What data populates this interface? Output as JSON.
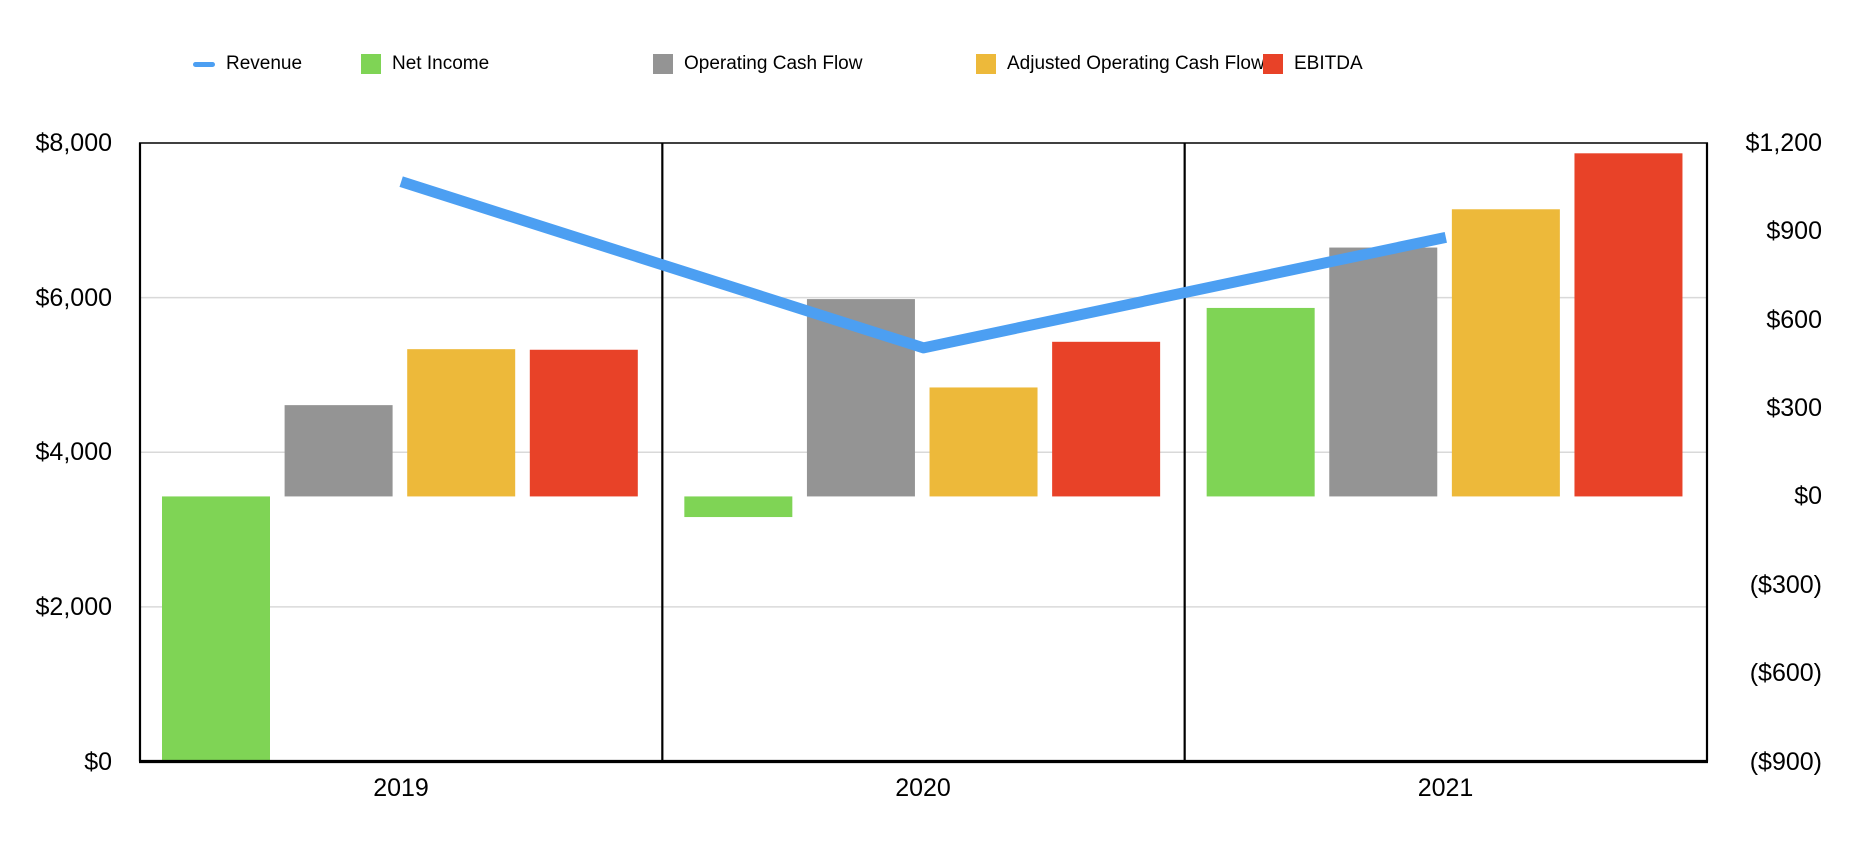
{
  "chart_data": {
    "type": "combo",
    "title": "",
    "categories": [
      "2019",
      "2020",
      "2021"
    ],
    "series": [
      {
        "name": "Revenue",
        "type": "line",
        "axis": "left",
        "color": "#4C9FF2",
        "values": [
          7500,
          5350,
          6780
        ]
      },
      {
        "name": "Net Income",
        "type": "bar",
        "axis": "right",
        "color": "#7FD455",
        "values": [
          -900,
          -70,
          640
        ]
      },
      {
        "name": "Operating Cash Flow",
        "type": "bar",
        "axis": "right",
        "color": "#949494",
        "values": [
          310,
          670,
          845
        ]
      },
      {
        "name": "Adjusted Operating Cash Flow",
        "type": "bar",
        "axis": "right",
        "color": "#EDB93A",
        "values": [
          500,
          370,
          975
        ]
      },
      {
        "name": "EBITDA",
        "type": "bar",
        "axis": "right",
        "color": "#E84228",
        "values": [
          498,
          525,
          1165
        ]
      }
    ],
    "left_axis": {
      "min": 0,
      "max": 8000,
      "ticks": [
        "$8,000",
        "$6,000",
        "$4,000",
        "$2,000",
        "$0"
      ]
    },
    "right_axis": {
      "min": -900,
      "max": 1200,
      "ticks": [
        "$1,200",
        "$900",
        "$600",
        "$300",
        "$0",
        "($300)",
        "($600)",
        "($900)"
      ]
    },
    "gridlines_left_values": [
      6000,
      4000,
      2000
    ],
    "bar_baseline_right_axis": 0,
    "legend_position": "top",
    "grid": "horizontal-only",
    "colors": {
      "axis": "#000000",
      "gridline": "#D9D9D9",
      "background": "#FFFFFF"
    }
  }
}
